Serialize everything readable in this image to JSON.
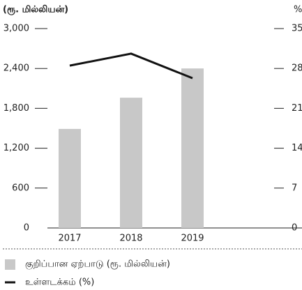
{
  "chart_data": {
    "type": "bar",
    "y_label": "(ரூ. மில்லியன்)",
    "y2_label": "%",
    "categories": [
      "2017",
      "2018",
      "2019"
    ],
    "series": [
      {
        "name": "குறிப்பான ஏற்பாடு (ரூ. மில்லியன்)",
        "type": "bar",
        "color": "#c8c8c8",
        "values": [
          1490,
          1960,
          2400
        ]
      },
      {
        "name": "உள்ளடக்கம் (%)",
        "type": "line",
        "axis": "y2",
        "color": "#111111",
        "values": [
          28.5,
          30.6,
          26.3
        ]
      }
    ],
    "ylim": [
      0,
      3000
    ],
    "yticks": [
      0,
      600,
      {
        "value": 1200,
        "label": "1,200"
      },
      {
        "value": 1800,
        "label": "1,800"
      },
      {
        "value": 2400,
        "label": "2,400"
      },
      {
        "value": 3000,
        "label": "3,000"
      }
    ],
    "y2lim": [
      0,
      35
    ],
    "y2ticks": [
      0,
      7,
      14,
      21,
      28,
      35
    ],
    "grid": false,
    "legend": "bottom"
  }
}
